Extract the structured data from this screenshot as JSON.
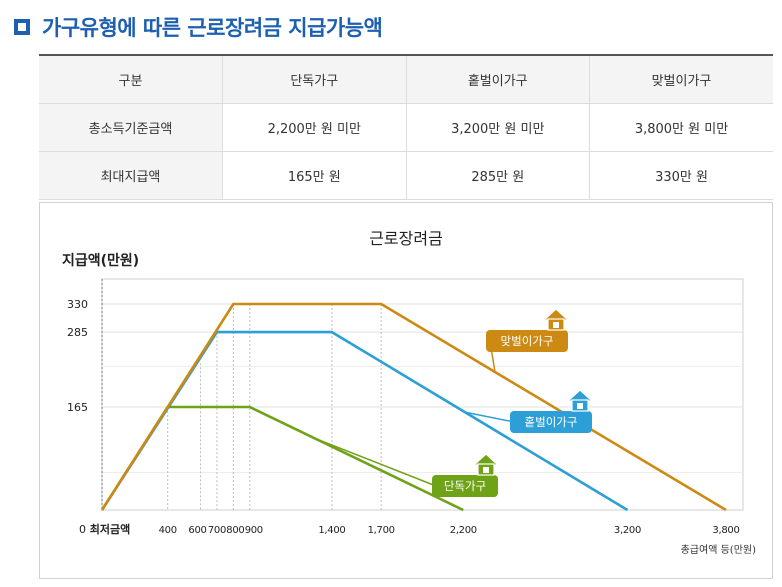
{
  "page_title": "가구유형에 따른 근로장려금 지급가능액",
  "table": {
    "headers": [
      "구분",
      "단독가구",
      "홑벌이가구",
      "맞벌이가구"
    ],
    "rows": [
      {
        "label": "총소득기준금액",
        "cells": [
          "2,200만 원 미만",
          "3,200만 원 미만",
          "3,800만 원 미만"
        ]
      },
      {
        "label": "최대지급액",
        "cells": [
          "165만 원",
          "285만 원",
          "330만 원"
        ]
      }
    ]
  },
  "chart_data": {
    "type": "line",
    "title": "근로장려금",
    "ylabel": "지급액(만원)",
    "xlabel": "총급여액 등(만원)",
    "x_origin_label": "최저금액",
    "y_ticks": [
      0,
      165,
      285,
      330
    ],
    "x_ticks": [
      400,
      600,
      700,
      800,
      900,
      1400,
      1700,
      2200,
      3200,
      3800
    ],
    "x_tick_labels": [
      "400",
      "600",
      "700",
      "800",
      "900",
      "1,400",
      "1,700",
      "2,200",
      "3,200",
      "3,800"
    ],
    "series": [
      {
        "name": "단독가구",
        "color": "#6ea317",
        "x": [
          0,
          400,
          900,
          2200
        ],
        "y": [
          0,
          165,
          165,
          0
        ]
      },
      {
        "name": "홑벌이가구",
        "color": "#2b9fd6",
        "x": [
          0,
          700,
          1400,
          3200
        ],
        "y": [
          0,
          285,
          285,
          0
        ]
      },
      {
        "name": "맞벌이가구",
        "color": "#cc8a12",
        "x": [
          0,
          800,
          1700,
          3800
        ],
        "y": [
          0,
          330,
          330,
          0
        ]
      }
    ],
    "legend": "labels beside each line with house icons",
    "grid": true
  }
}
